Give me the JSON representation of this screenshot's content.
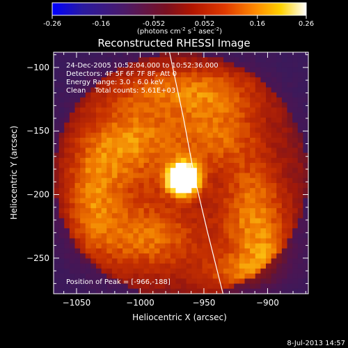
{
  "chart_data": {
    "type": "heatmap",
    "title": "Reconstructed RHESSI Image",
    "xlabel": "Heliocentric X (arcsec)",
    "ylabel": "Heliocentric Y (arcsec)",
    "xlim": [
      -1068,
      -868
    ],
    "ylim": [
      -278,
      -88
    ],
    "x_ticks": [
      -1050,
      -1000,
      -950,
      -900
    ],
    "y_ticks": [
      -100,
      -150,
      -200,
      -250
    ],
    "colorbar": {
      "range": [
        -0.26,
        0.26
      ],
      "ticks": [
        "-0.26",
        "-0.16",
        "-0.052",
        "0.052",
        "0.16",
        "0.26"
      ],
      "unit_prefix": "(photons cm",
      "unit_sup1": "-2",
      "unit_mid": " s",
      "unit_sup2": "-1",
      "unit_mid2": " asec",
      "unit_sup3": "-2",
      "unit_suffix": ")",
      "colormap": "hot (black-blue-purple-red-orange-yellow-white)"
    },
    "annotations": {
      "time_range": "24-Dec-2005 10:52:04.000 to 10:52:36.000",
      "detectors": "Detectors: 4F 5F 6F 7F 8F, Att 0",
      "energy": "Energy Range: 3.0 - 6.0 keV",
      "clean": "Clean    Total counts: 5.61E+03",
      "peak_position": "Position of Peak = [-966,-188]"
    },
    "peak": {
      "x": -966,
      "y": -188
    },
    "limb_curve": [
      [
        -977,
        -88
      ],
      [
        -966,
        -140
      ],
      [
        -957,
        -188
      ],
      [
        -947,
        -230
      ],
      [
        -935,
        -278
      ]
    ],
    "blobs": [
      {
        "x": -966,
        "y": -188,
        "sx": 9,
        "sy": 9,
        "amp": 1.0
      },
      {
        "x": -1010,
        "y": -160,
        "sx": 28,
        "sy": 30,
        "amp": 0.42
      },
      {
        "x": -940,
        "y": -150,
        "sx": 30,
        "sy": 24,
        "amp": 0.38
      },
      {
        "x": -910,
        "y": -210,
        "sx": 20,
        "sy": 26,
        "amp": 0.4
      },
      {
        "x": -995,
        "y": -235,
        "sx": 36,
        "sy": 22,
        "amp": 0.4
      },
      {
        "x": -1040,
        "y": -200,
        "sx": 16,
        "sy": 30,
        "amp": 0.3
      },
      {
        "x": -960,
        "y": -115,
        "sx": 40,
        "sy": 14,
        "amp": 0.3
      },
      {
        "x": -900,
        "y": -250,
        "sx": 22,
        "sy": 18,
        "amp": 0.28
      },
      {
        "x": -925,
        "y": -265,
        "sx": 24,
        "sy": 12,
        "amp": 0.24
      }
    ],
    "footer_date": "8-Jul-2013 14:57"
  }
}
